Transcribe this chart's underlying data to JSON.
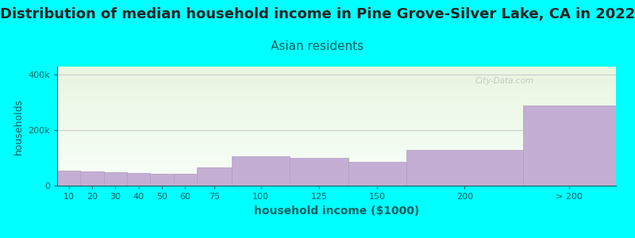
{
  "title": "Distribution of median household income in Pine Grove-Silver Lake, CA in 2022",
  "subtitle": "Asian residents",
  "xlabel": "household income ($1000)",
  "ylabel": "households",
  "background_color": "#00FFFF",
  "plot_bg_gradient_top": "#e8f5e0",
  "plot_bg_gradient_bottom": "#f8fff8",
  "bar_color": "#c4aed4",
  "bar_edge_color": "#b09cc0",
  "categories": [
    "10",
    "20",
    "30",
    "40",
    "50",
    "60",
    "75",
    "100",
    "125",
    "150",
    "200",
    "> 200"
  ],
  "values": [
    55000,
    52000,
    50000,
    45000,
    44000,
    44000,
    65000,
    105000,
    100000,
    85000,
    130000,
    290000
  ],
  "x_edges": [
    0,
    10,
    20,
    30,
    40,
    50,
    60,
    75,
    100,
    125,
    150,
    200,
    240
  ],
  "ylim": [
    0,
    430000
  ],
  "ytick_vals": [
    0,
    200000,
    400000
  ],
  "ytick_labels": [
    "0",
    "200k",
    "400k"
  ],
  "title_fontsize": 13,
  "subtitle_fontsize": 11,
  "xlabel_fontsize": 10,
  "ylabel_fontsize": 9,
  "tick_color": "#006060",
  "title_color": "#222222",
  "subtitle_color": "#006060",
  "label_color": "#006060",
  "watermark": "City-Data.com",
  "grid_color": "#cccccc"
}
